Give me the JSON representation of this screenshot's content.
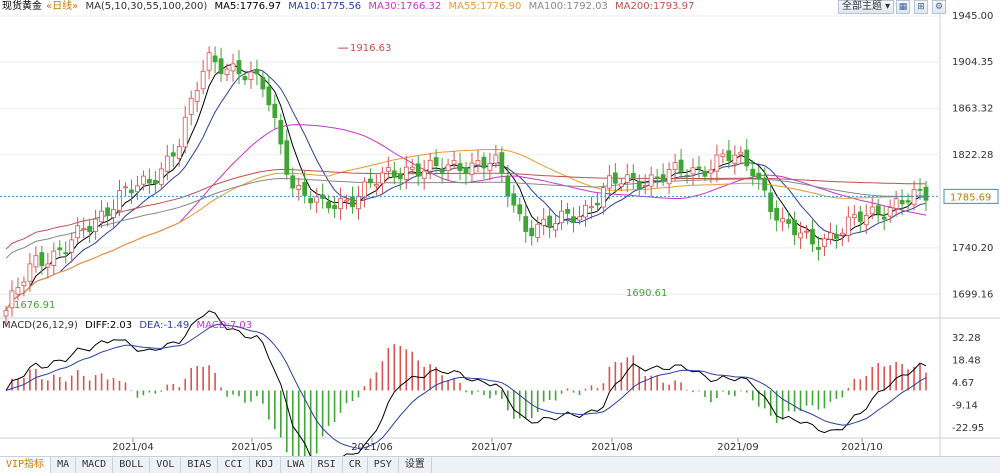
{
  "header": {
    "instrument": "现货黄金",
    "period": "«日线»",
    "ma_params": "MA(5,10,30,55,100,200)",
    "ma": [
      {
        "label": "MA5:1776.97",
        "color": "#000000"
      },
      {
        "label": "MA10:1775.56",
        "color": "#2b3fa0"
      },
      {
        "label": "MA30:1766.32",
        "color": "#cc33cc"
      },
      {
        "label": "MA55:1776.90",
        "color": "#e59a2f"
      },
      {
        "label": "MA100:1792.03",
        "color": "#888888"
      },
      {
        "label": "MA200:1793.97",
        "color": "#c0504d"
      }
    ],
    "theme_button": "全部主题",
    "icons": [
      "grid-icon",
      "expand-icon",
      "settings-icon"
    ]
  },
  "price_axis": {
    "ticks": [
      "1945.00",
      "1904.35",
      "1863.32",
      "1822.28",
      "1785.69",
      "1740.20",
      "1699.16"
    ],
    "current": "1785.69"
  },
  "annotations": {
    "high": "1916.63",
    "low1": "1676.91",
    "low2": "1690.61"
  },
  "macd": {
    "params": "MACD(26,12,9)",
    "diff": "DIFF:2.03",
    "dea": "DEA:-1.49",
    "macd": "MACD:7.03",
    "ticks": [
      "32.28",
      "18.48",
      "4.67",
      "-9.14",
      "-22.95"
    ]
  },
  "x_axis": [
    "2021/04",
    "2021/05",
    "2021/06",
    "2021/07",
    "2021/08",
    "2021/09",
    "2021/10"
  ],
  "tabs": [
    "VIP指标",
    "MA",
    "MACD",
    "BOLL",
    "VOL",
    "BIAS",
    "CCI",
    "KDJ",
    "LWA",
    "RSI",
    "CR",
    "PSY",
    "设置"
  ],
  "colors": {
    "up": "#d9534f",
    "down": "#3fa535",
    "bg": "#ffffff",
    "grid": "#e3e3e3"
  },
  "chart_data": {
    "type": "candlestick",
    "x": [
      "2021/04",
      "2021/05",
      "2021/06",
      "2021/07",
      "2021/08",
      "2021/09",
      "2021/10"
    ],
    "close_path": [
      1685,
      1728,
      1740,
      1760,
      1790,
      1795,
      1835,
      1905,
      1900,
      1880,
      1795,
      1775,
      1785,
      1800,
      1812,
      1808,
      1815,
      1815,
      1760,
      1760,
      1772,
      1796,
      1800,
      1805,
      1808,
      1822,
      1810,
      1760,
      1745,
      1755,
      1770,
      1780,
      1786
    ],
    "high": 1916.63,
    "low": 1676.91,
    "current": 1785.69,
    "ylim": [
      1680,
      1945
    ],
    "macd_ylim": [
      -22.95,
      32.28
    ]
  }
}
